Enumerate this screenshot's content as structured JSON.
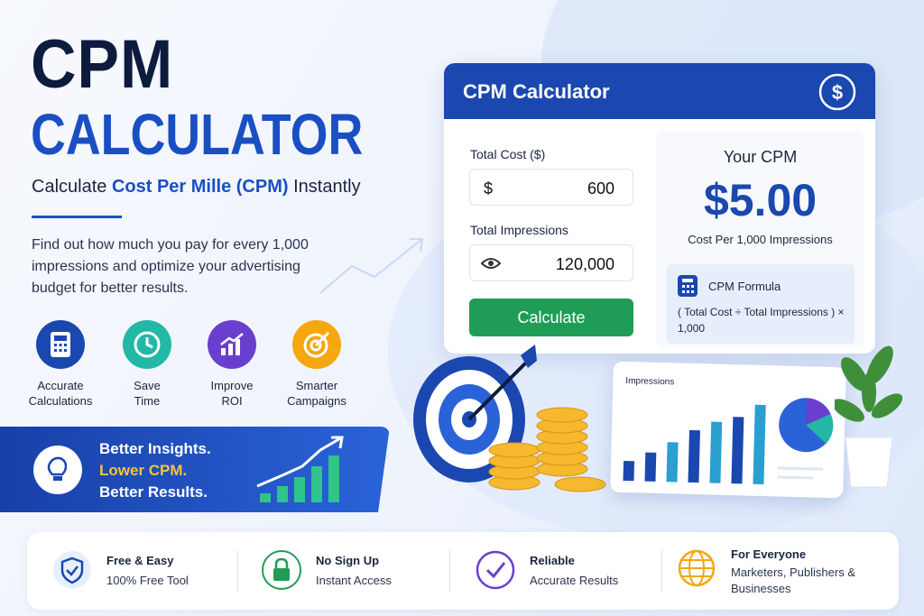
{
  "hero": {
    "title_line1": "CPM",
    "title_line2": "CALCULATOR",
    "subtitle_pre": "Calculate",
    "subtitle_highlight": "Cost Per Mille (CPM)",
    "subtitle_post": "Instantly",
    "description": "Find out how much you pay for every 1,000 impressions and optimize your advertising budget for better results."
  },
  "features": [
    {
      "label": "Accurate Calculations"
    },
    {
      "label": "Save Time"
    },
    {
      "label": "Improve ROI"
    },
    {
      "label": "Smarter Campaigns"
    }
  ],
  "banner": {
    "lines": [
      "Better Insights.",
      "Lower CPM.",
      "Better Results."
    ]
  },
  "calculator": {
    "title": "CPM Calculator",
    "cost_label": "Total Cost ($)",
    "cost_prefix": "$",
    "cost_value": "600",
    "impressions_label": "Total Impressions",
    "impressions_value": "120,000",
    "button": "Calculate",
    "result_title": "Your CPM",
    "result_value": "$5.00",
    "result_caption": "Cost Per 1,000 Impressions",
    "formula_title": "CPM Formula",
    "formula": "( Total Cost ÷ Total Impressions ) × 1,000"
  },
  "illustration": {
    "card_title": "Impressions"
  },
  "footer": [
    {
      "title": "Free & Easy",
      "subtitle": "100% Free Tool"
    },
    {
      "title": "No Sign Up",
      "subtitle": "Instant Access"
    },
    {
      "title": "Reliable",
      "subtitle": "Accurate Results"
    },
    {
      "title": "For Everyone",
      "subtitle": "Marketers, Publishers & Businesses"
    }
  ]
}
